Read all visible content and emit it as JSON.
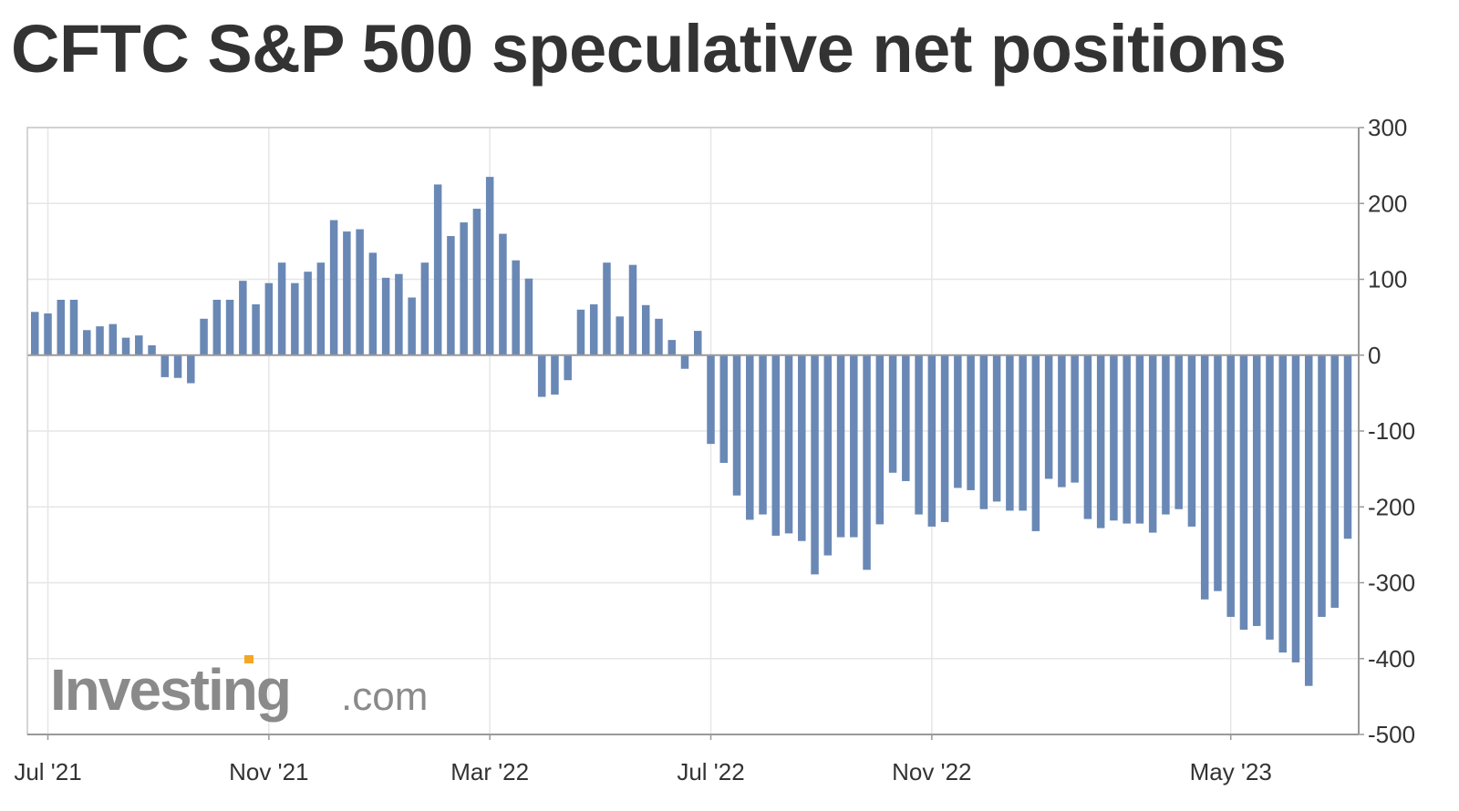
{
  "chart_data": {
    "type": "bar",
    "title": "CFTC S&P 500 speculative net positions",
    "xlabel": "",
    "ylabel": "",
    "ylim": [
      -500,
      300
    ],
    "yticks": [
      300,
      200,
      100,
      0,
      -100,
      -200,
      -300,
      -400,
      -500
    ],
    "ytick_labels": [
      "300",
      "200",
      "100",
      "0",
      "-100",
      "-200",
      "-300",
      "-400",
      "-500"
    ],
    "xtick_labels": [
      "Jul '21",
      "Nov '21",
      "Mar '22",
      "Jul '22",
      "Nov '22",
      "May '23"
    ],
    "xtick_bar_index": [
      1,
      18,
      35,
      52,
      69,
      92
    ],
    "grid": true,
    "legend": "none",
    "bar_color": "#6a88b5",
    "values": [
      57,
      55,
      73,
      73,
      33,
      38,
      41,
      23,
      26,
      13,
      -29,
      -30,
      -37,
      48,
      73,
      73,
      98,
      67,
      95,
      122,
      95,
      110,
      122,
      178,
      163,
      166,
      135,
      102,
      107,
      76,
      122,
      225,
      157,
      175,
      193,
      235,
      160,
      125,
      101,
      -55,
      -52,
      -33,
      60,
      67,
      122,
      51,
      119,
      66,
      48,
      20,
      -18,
      32,
      -117,
      -142,
      -185,
      -217,
      -210,
      -238,
      -235,
      -245,
      -289,
      -264,
      -240,
      -240,
      -283,
      -223,
      -155,
      -166,
      -210,
      -226,
      -220,
      -175,
      -178,
      -203,
      -193,
      -205,
      -205,
      -232,
      -163,
      -174,
      -168,
      -216,
      -228,
      -218,
      -222,
      -222,
      -234,
      -210,
      -203,
      -226,
      -322,
      -311,
      -345,
      -362,
      -357,
      -375,
      -392,
      -405,
      -436,
      -345,
      -333,
      -242
    ]
  },
  "watermark": {
    "brand": "Investing",
    "suffix": ".com"
  }
}
